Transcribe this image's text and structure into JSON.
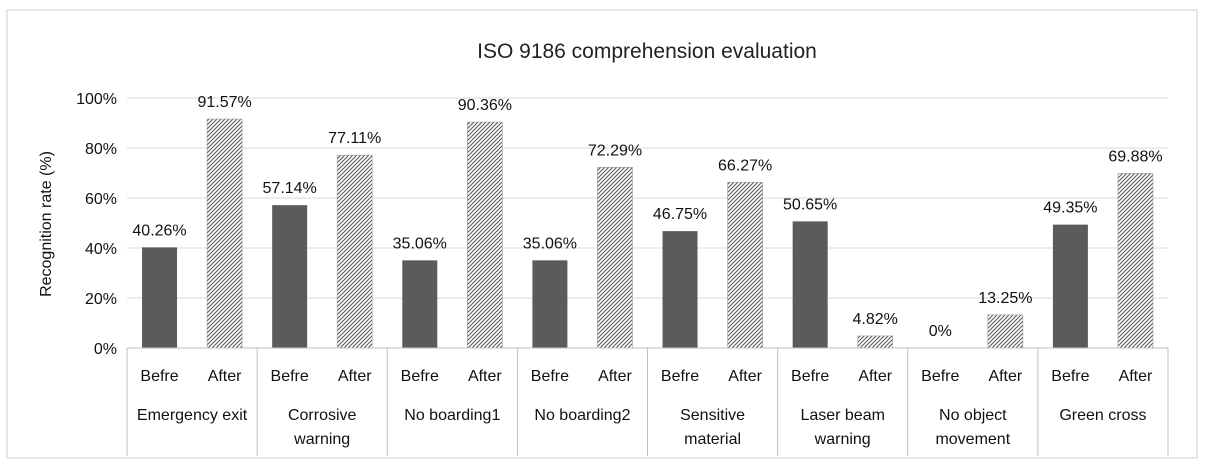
{
  "chart_data": {
    "type": "bar",
    "title": "ISO 9186 comprehension evaluation",
    "xlabel": "",
    "ylabel": "Recognition rate (%)",
    "ylim": [
      0,
      100
    ],
    "yticks": [
      "0%",
      "20%",
      "40%",
      "60%",
      "80%",
      "100%"
    ],
    "grid": true,
    "legend": "none",
    "colors": {
      "befre": "#5b5b5b",
      "after_hatch": "#555555",
      "grid": "#d9d9d9",
      "frame": "#bfbfbf"
    },
    "sub_labels": [
      "Befre",
      "After"
    ],
    "categories": [
      [
        "Emergency exit"
      ],
      [
        "Corrosive",
        "warning"
      ],
      [
        "No boarding1"
      ],
      [
        "No boarding2"
      ],
      [
        "Sensitive",
        "material"
      ],
      [
        "Laser beam",
        "warning"
      ],
      [
        "No object",
        "movement"
      ],
      [
        "Green cross"
      ]
    ],
    "series": [
      {
        "values": [
          40.26,
          57.14,
          35.06,
          35.06,
          46.75,
          50.65,
          0,
          49.35
        ],
        "labels": [
          "40.26%",
          "57.14%",
          "35.06%",
          "35.06%",
          "46.75%",
          "50.65%",
          "0%",
          "49.35%"
        ]
      },
      {
        "values": [
          91.57,
          77.11,
          90.36,
          72.29,
          66.27,
          4.82,
          13.25,
          69.88
        ],
        "labels": [
          "91.57%",
          "77.11%",
          "90.36%",
          "72.29%",
          "66.27%",
          "4.82%",
          "13.25%",
          "69.88%"
        ]
      }
    ]
  }
}
